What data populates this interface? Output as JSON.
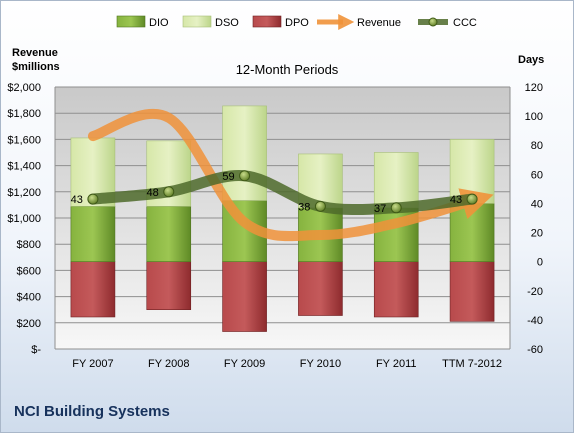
{
  "chart_data": {
    "type": "bar",
    "subtitle": "12-Month Periods",
    "company": "NCI Building Systems",
    "left_axis_title": [
      "Revenue",
      "$millions"
    ],
    "right_axis_title": "Days",
    "categories": [
      "FY 2007",
      "FY 2008",
      "FY 2009",
      "FY 2010",
      "FY 2011",
      "TTM 7-2012"
    ],
    "left_axis": {
      "min": 0,
      "max": 2000,
      "step": 200,
      "tick_labels": [
        "$-",
        "$200",
        "$400",
        "$600",
        "$800",
        "$1,000",
        "$1,200",
        "$1,400",
        "$1,600",
        "$1,800",
        "$2,000"
      ]
    },
    "right_axis": {
      "min": -60,
      "max": 120,
      "step": 20,
      "tick_labels": [
        "-60",
        "-40",
        "-20",
        "0",
        "20",
        "40",
        "60",
        "80",
        "100",
        "120"
      ]
    },
    "grid": true,
    "legend_position": "top",
    "legend": [
      "DIO",
      "DSO",
      "DPO",
      "Revenue",
      "CCC"
    ],
    "series": [
      {
        "name": "DIO",
        "axis": "right",
        "kind": "stacked-bar",
        "color": "#6e9b2d",
        "values": [
          38,
          38,
          42,
          37,
          37,
          40
        ]
      },
      {
        "name": "DSO",
        "axis": "right",
        "kind": "stacked-bar",
        "color": "#cfe29e",
        "values": [
          47,
          45,
          65,
          37,
          38,
          44
        ]
      },
      {
        "name": "DPO",
        "axis": "right",
        "kind": "stacked-bar-negative",
        "color": "#a83a3d",
        "values": [
          -38,
          -33,
          -48,
          -37,
          -38,
          -41
        ]
      },
      {
        "name": "Revenue",
        "axis": "left",
        "kind": "smooth-line",
        "color": "#f0923a",
        "values": [
          1625,
          1765,
          967,
          870,
          960,
          1130
        ]
      },
      {
        "name": "CCC",
        "axis": "right",
        "kind": "smooth-line",
        "color": "#4e6a2a",
        "values": [
          43,
          48,
          59,
          38,
          37,
          43
        ],
        "labels": [
          "43",
          "48",
          "59",
          "38",
          "37",
          "43"
        ]
      }
    ]
  }
}
